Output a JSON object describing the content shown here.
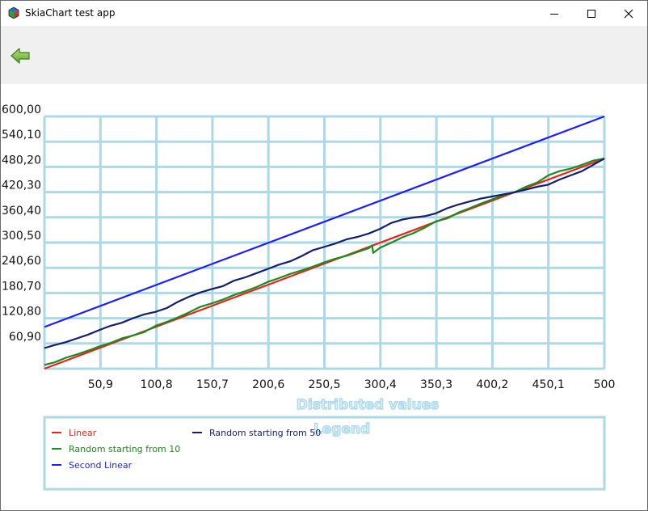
{
  "window": {
    "title": "SkiaChart test app",
    "minimize_icon": "minimize-icon",
    "maximize_icon": "maximize-icon",
    "close_icon": "close-icon"
  },
  "toolbar": {
    "back_icon": "back-arrow-icon",
    "back_color": "#7cc242"
  },
  "chart_data": {
    "type": "line",
    "xlabel": "Distributed values",
    "legend_title": "Legend",
    "xlim": [
      1,
      500
    ],
    "ylim": [
      1,
      600
    ],
    "x_ticks": [
      "50,9",
      "100,8",
      "150,7",
      "200,6",
      "250,5",
      "300,4",
      "350,3",
      "400,2",
      "450,1",
      "500"
    ],
    "y_ticks": [
      "60,90",
      "120,80",
      "180,70",
      "240,60",
      "300,50",
      "360,40",
      "420,30",
      "480,20",
      "540,10",
      "600,00"
    ],
    "grid": true,
    "grid_color": "#add8e6",
    "series": [
      {
        "name": "Linear",
        "color": "#e8231d",
        "x": [
          1,
          500
        ],
        "y": [
          1,
          500
        ]
      },
      {
        "name": "Random starting from 10",
        "color": "#1c8a1c",
        "x": [
          1,
          10,
          20,
          30,
          40,
          50,
          60,
          70,
          80,
          90,
          100,
          110,
          120,
          130,
          140,
          150,
          160,
          170,
          180,
          190,
          200,
          210,
          220,
          230,
          240,
          250,
          260,
          270,
          280,
          290,
          293,
          294,
          300,
          310,
          320,
          330,
          340,
          350,
          360,
          370,
          380,
          390,
          400,
          410,
          420,
          430,
          440,
          450,
          460,
          470,
          480,
          490,
          500
        ],
        "y": [
          10,
          16,
          27,
          35,
          44,
          54,
          62,
          73,
          80,
          88,
          103,
          112,
          123,
          135,
          148,
          156,
          165,
          176,
          185,
          195,
          207,
          216,
          226,
          234,
          243,
          253,
          262,
          269,
          278,
          287,
          294,
          276,
          288,
          300,
          313,
          323,
          336,
          351,
          358,
          372,
          382,
          393,
          403,
          413,
          420,
          433,
          443,
          460,
          470,
          476,
          485,
          495,
          500
        ]
      },
      {
        "name": "Second Linear",
        "color": "#1d1dff",
        "x": [
          1,
          500
        ],
        "y": [
          100,
          600
        ]
      },
      {
        "name": "Random starting from 50",
        "color": "#141d6e",
        "x": [
          1,
          10,
          20,
          30,
          40,
          50,
          60,
          70,
          80,
          90,
          100,
          110,
          120,
          130,
          140,
          150,
          160,
          170,
          180,
          190,
          200,
          210,
          220,
          230,
          240,
          250,
          260,
          270,
          280,
          290,
          300,
          310,
          320,
          330,
          340,
          350,
          360,
          370,
          380,
          390,
          400,
          410,
          420,
          430,
          440,
          450,
          460,
          470,
          480,
          490,
          500
        ],
        "y": [
          50,
          57,
          64,
          73,
          82,
          93,
          103,
          110,
          121,
          130,
          136,
          145,
          160,
          172,
          182,
          190,
          197,
          210,
          218,
          228,
          238,
          248,
          256,
          268,
          282,
          290,
          298,
          308,
          314,
          322,
          333,
          347,
          355,
          360,
          363,
          370,
          382,
          391,
          398,
          405,
          410,
          415,
          420,
          426,
          433,
          438,
          450,
          460,
          470,
          485,
          500
        ]
      }
    ],
    "legend_layout": "bottom box, two columns"
  }
}
